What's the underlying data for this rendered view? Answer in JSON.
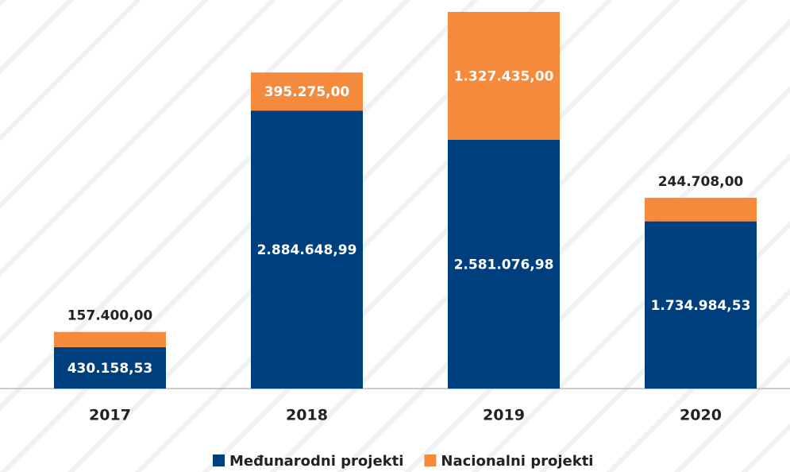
{
  "chart_data": {
    "type": "bar",
    "stacked": true,
    "categories": [
      "2017",
      "2018",
      "2019",
      "2020"
    ],
    "series": [
      {
        "name": "Međunarodni projekti",
        "color": "#003f7d",
        "values": [
          430158.53,
          2884648.99,
          2581076.98,
          1734984.53
        ],
        "value_labels": [
          "430.158,53",
          "2.884.648,99",
          "2.581.076,98",
          "1.734.984,53"
        ]
      },
      {
        "name": "Nacionalni projekti",
        "color": "#f58a3c",
        "values": [
          157400.0,
          395275.0,
          1327435.0,
          244708.0
        ],
        "value_labels": [
          "157.400,00",
          "395.275,00",
          "1.327.435,00",
          "244.708,00"
        ]
      }
    ]
  }
}
